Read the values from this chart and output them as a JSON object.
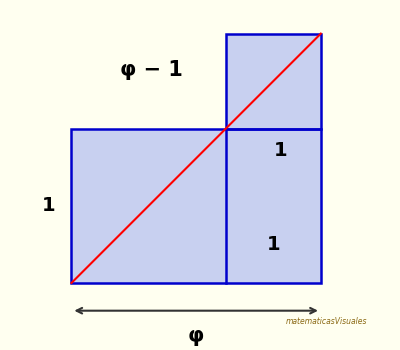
{
  "phi": 1.6180339887,
  "background_color": "#FFFFF0",
  "blue_fill": "#C8D0F0",
  "blue_edge": "#0000CC",
  "red_line_color": "#FF0000",
  "arrow_color": "#333333",
  "text_color": "#000000",
  "label_phi_minus_1": "φ − 1",
  "label_phi": "φ",
  "label_1_left": "1",
  "label_1_bottom": "1",
  "label_1_right": "1",
  "figsize": [
    4.0,
    3.5
  ],
  "dpi": 100
}
